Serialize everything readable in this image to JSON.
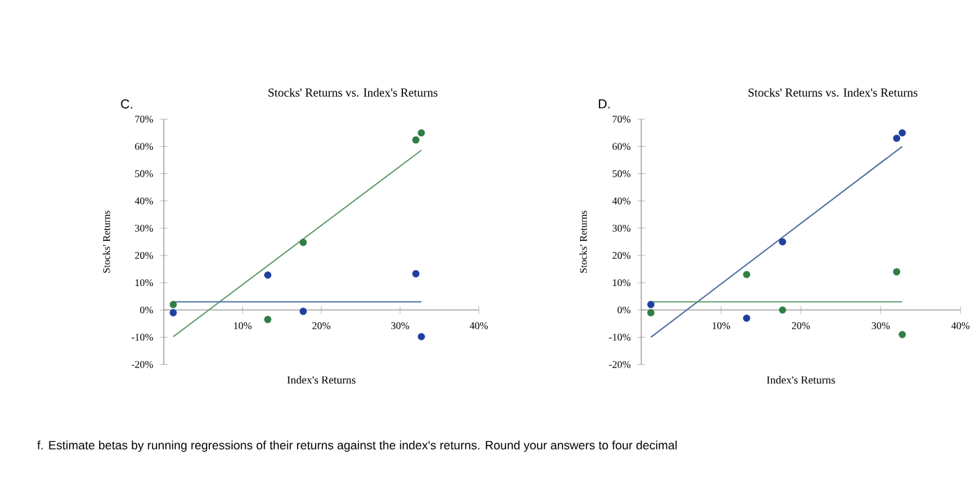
{
  "chart_data": [
    {
      "type": "scatter",
      "title": "Stocks' Returns vs. Index's Returns",
      "xlabel": "Index's Returns",
      "ylabel": "Stocks' Returns",
      "annotations": [
        "C.",
        "f. Estimate betas by running regressions of their returns against the index's returns. Round your answers to four decimal"
      ],
      "xlim": [
        0,
        40
      ],
      "xticks": [
        {
          "value": 10,
          "label": "10%"
        },
        {
          "value": 20,
          "label": "20%"
        },
        {
          "value": 30,
          "label": "30%"
        },
        {
          "value": 40,
          "label": "40%"
        }
      ],
      "ylim": [
        -20,
        70
      ],
      "yticks": [
        {
          "value": -20,
          "label": "-20%"
        },
        {
          "value": -10,
          "label": "-10%"
        },
        {
          "value": 0,
          "label": "0%"
        },
        {
          "value": 10,
          "label": "10%"
        },
        {
          "value": 20,
          "label": "20%"
        },
        {
          "value": 30,
          "label": "30%"
        },
        {
          "value": 40,
          "label": "40%"
        },
        {
          "value": 50,
          "label": "50%"
        },
        {
          "value": 60,
          "label": "60%"
        },
        {
          "value": 70,
          "label": "70%"
        }
      ],
      "series": [
        {
          "marker": "circle",
          "color": "#1f3fa0",
          "x": [
            1.2,
            13.2,
            17.7,
            32,
            32.7
          ],
          "values": [
            -1,
            12.8,
            -0.5,
            13.3,
            -9.8
          ]
        },
        {
          "marker": "circle",
          "color": "#2f7f45",
          "x": [
            1.2,
            13.2,
            17.7,
            32,
            32.7
          ],
          "values": [
            2,
            -3.5,
            24.8,
            62.4,
            65
          ]
        },
        {
          "type": "line",
          "marker": "none",
          "color": "#5a9a6a",
          "x": [
            1.2,
            32.7
          ],
          "values": [
            -9.8,
            58.6
          ]
        },
        {
          "type": "line",
          "marker": "none",
          "color": "#4a6aa0",
          "x": [
            1.2,
            32.7
          ],
          "values": [
            3,
            3
          ]
        }
      ]
    },
    {
      "type": "scatter",
      "title": "Stocks' Returns vs. Index's Returns",
      "xlabel": "Index's Returns",
      "ylabel": "Stocks' Returns",
      "annotations": [
        "D."
      ],
      "xlim": [
        0,
        40
      ],
      "xticks": [
        {
          "value": 10,
          "label": "10%"
        },
        {
          "value": 20,
          "label": "20%"
        },
        {
          "value": 30,
          "label": "30%"
        },
        {
          "value": 40,
          "label": "40%"
        }
      ],
      "ylim": [
        -20,
        70
      ],
      "yticks": [
        {
          "value": -20,
          "label": "-20%"
        },
        {
          "value": -10,
          "label": "-10%"
        },
        {
          "value": 0,
          "label": "0%"
        },
        {
          "value": 10,
          "label": "10%"
        },
        {
          "value": 20,
          "label": "20%"
        },
        {
          "value": 30,
          "label": "30%"
        },
        {
          "value": 40,
          "label": "40%"
        },
        {
          "value": 50,
          "label": "50%"
        },
        {
          "value": 60,
          "label": "60%"
        },
        {
          "value": 70,
          "label": "70%"
        }
      ],
      "series": [
        {
          "marker": "circle",
          "color": "#1f3fa0",
          "x": [
            1.2,
            13.2,
            17.7,
            32,
            32.7
          ],
          "values": [
            2,
            -3,
            25,
            63,
            65
          ]
        },
        {
          "marker": "circle",
          "color": "#2f7f45",
          "x": [
            1.2,
            13.2,
            17.7,
            32,
            32.7
          ],
          "values": [
            -1,
            13,
            0,
            14,
            -9
          ]
        },
        {
          "type": "line",
          "marker": "none",
          "color": "#4a6aa0",
          "x": [
            1.2,
            32.7
          ],
          "values": [
            -10,
            60
          ]
        },
        {
          "type": "line",
          "marker": "none",
          "color": "#5a9a6a",
          "x": [
            1.2,
            32.7
          ],
          "values": [
            3,
            3
          ]
        }
      ]
    }
  ]
}
